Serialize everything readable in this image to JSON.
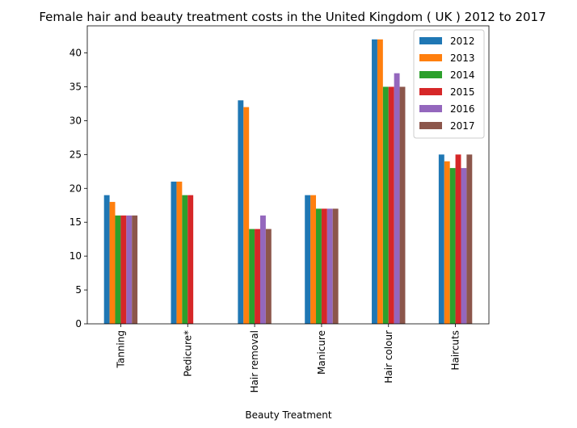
{
  "chart_data": {
    "type": "bar",
    "title": "Female hair and beauty treatment costs in the United Kingdom ( UK ) 2012 to 2017",
    "xlabel": "Beauty Treatment",
    "ylabel": "",
    "categories": [
      "Tanning",
      "Pedicure*",
      "Hair removal",
      "Manicure",
      "Hair colour",
      "Haircuts"
    ],
    "series": [
      {
        "name": "2012",
        "color": "#1f77b4",
        "values": [
          19,
          21,
          33,
          19,
          42,
          25
        ]
      },
      {
        "name": "2013",
        "color": "#ff7f0e",
        "values": [
          18,
          21,
          32,
          19,
          42,
          24
        ]
      },
      {
        "name": "2014",
        "color": "#2ca02c",
        "values": [
          16,
          19,
          14,
          17,
          35,
          23
        ]
      },
      {
        "name": "2015",
        "color": "#d62728",
        "values": [
          16,
          19,
          14,
          17,
          35,
          25
        ]
      },
      {
        "name": "2016",
        "color": "#9467bd",
        "values": [
          16,
          null,
          16,
          17,
          37,
          23
        ]
      },
      {
        "name": "2017",
        "color": "#8c564b",
        "values": [
          16,
          null,
          14,
          17,
          35,
          25
        ]
      }
    ],
    "ylim": [
      0,
      44
    ],
    "yticks": [
      0,
      5,
      10,
      15,
      20,
      25,
      30,
      35,
      40
    ],
    "grid": false,
    "legend_position": "top-right"
  }
}
